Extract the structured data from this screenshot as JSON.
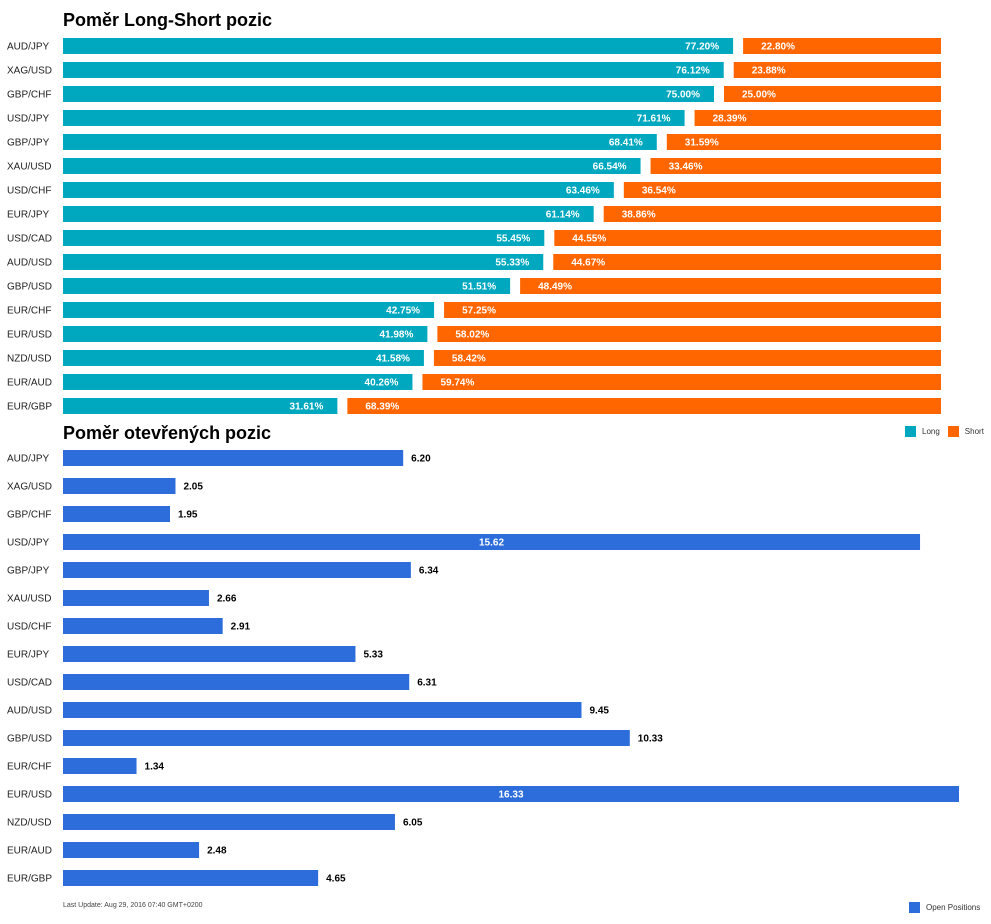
{
  "colors": {
    "long": "#00a8bf",
    "short": "#ff6600",
    "open": "#2c6ddb"
  },
  "chart_data": [
    {
      "type": "bar",
      "orientation": "horizontal",
      "stacked": true,
      "title": "Poměr Long-Short pozic",
      "categories": [
        "AUD/JPY",
        "XAG/USD",
        "GBP/CHF",
        "USD/JPY",
        "GBP/JPY",
        "XAU/USD",
        "USD/CHF",
        "EUR/JPY",
        "USD/CAD",
        "AUD/USD",
        "GBP/USD",
        "EUR/CHF",
        "EUR/USD",
        "NZD/USD",
        "EUR/AUD",
        "EUR/GBP"
      ],
      "series": [
        {
          "name": "Long",
          "values": [
            77.2,
            76.12,
            75.0,
            71.61,
            68.41,
            66.54,
            63.46,
            61.14,
            55.45,
            55.33,
            51.51,
            42.75,
            41.98,
            41.58,
            40.26,
            31.61
          ],
          "labels": [
            "77.20%",
            "76.12%",
            "75.00%",
            "71.61%",
            "68.41%",
            "66.54%",
            "63.46%",
            "61.14%",
            "55.45%",
            "55.33%",
            "51.51%",
            "42.75%",
            "41.98%",
            "41.58%",
            "40.26%",
            "31.61%"
          ]
        },
        {
          "name": "Short",
          "values": [
            22.8,
            23.88,
            25.0,
            28.39,
            31.59,
            33.46,
            36.54,
            38.86,
            44.55,
            44.67,
            48.49,
            57.25,
            58.02,
            58.42,
            59.74,
            68.39
          ],
          "labels": [
            "22.80%",
            "23.88%",
            "25.00%",
            "28.39%",
            "31.59%",
            "33.46%",
            "36.54%",
            "38.86%",
            "44.55%",
            "44.67%",
            "48.49%",
            "57.25%",
            "58.02%",
            "58.42%",
            "59.74%",
            "68.39%"
          ]
        }
      ],
      "legend": "bottom-right"
    },
    {
      "type": "bar",
      "orientation": "horizontal",
      "title": "Poměr otevřených pozic",
      "categories": [
        "AUD/JPY",
        "XAG/USD",
        "GBP/CHF",
        "USD/JPY",
        "GBP/JPY",
        "XAU/USD",
        "USD/CHF",
        "EUR/JPY",
        "USD/CAD",
        "AUD/USD",
        "GBP/USD",
        "EUR/CHF",
        "EUR/USD",
        "NZD/USD",
        "EUR/AUD",
        "EUR/GBP"
      ],
      "series": [
        {
          "name": "Open Positions",
          "values": [
            6.2,
            2.05,
            1.95,
            15.62,
            6.34,
            2.66,
            2.91,
            5.33,
            6.31,
            9.45,
            10.33,
            1.34,
            16.33,
            6.05,
            2.48,
            4.65
          ],
          "labels": [
            "6.20",
            "2.05",
            "1.95",
            "15.62",
            "6.34",
            "2.66",
            "2.91",
            "5.33",
            "6.31",
            "9.45",
            "10.33",
            "1.34",
            "16.33",
            "6.05",
            "2.48",
            "4.65"
          ]
        }
      ],
      "legend": "bottom-right"
    }
  ],
  "footer": {
    "last_update": "Last Update: Aug 29, 2016 07:40 GMT+0200"
  }
}
